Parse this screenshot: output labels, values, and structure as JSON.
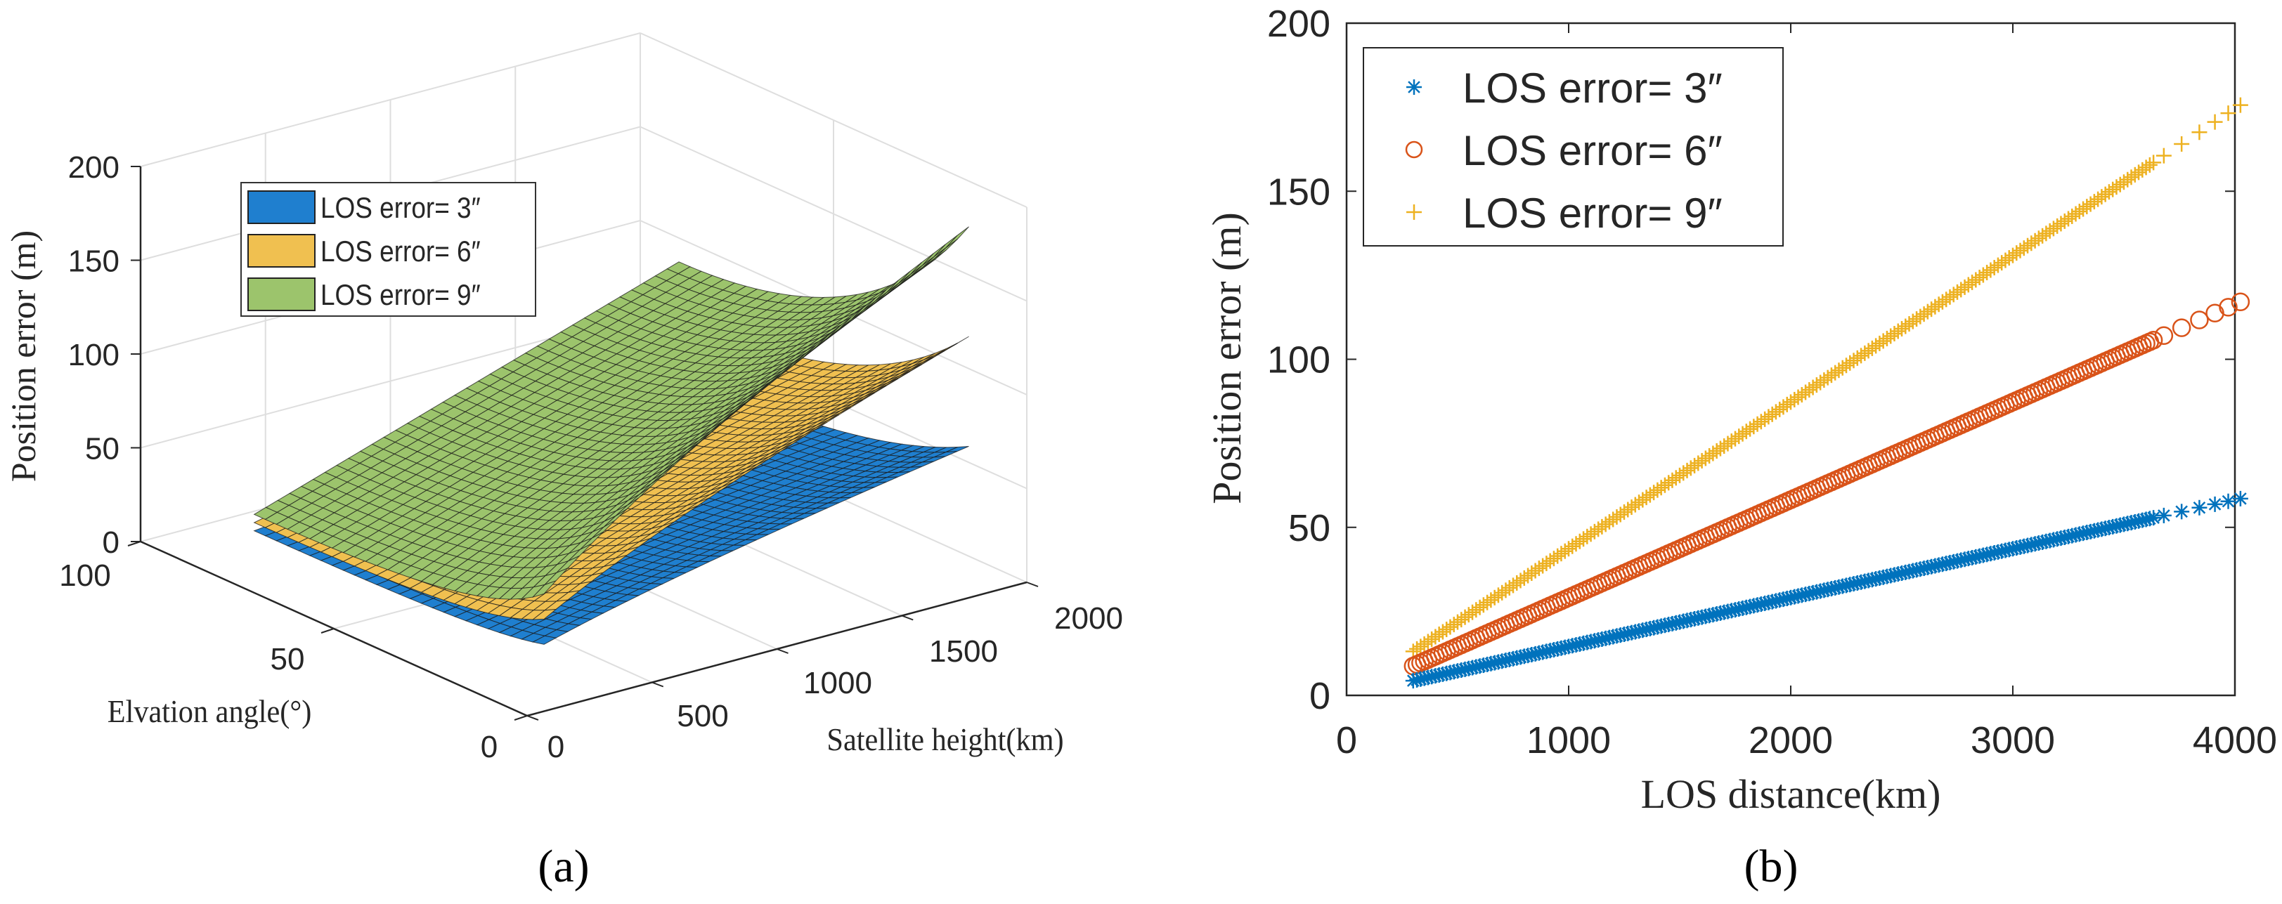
{
  "chart_data": [
    {
      "panel": "(a)",
      "type": "surface3d",
      "xlabel": "Satellite height(km)",
      "ylabel": "Elvation angle(°)",
      "zlabel": "Position error (m)",
      "x_ticks": [
        "0",
        "500",
        "1000",
        "1500",
        "2000"
      ],
      "y_ticks": [
        "100",
        "50",
        "0"
      ],
      "z_ticks": [
        "0",
        "50",
        "100",
        "150",
        "200"
      ],
      "xlim": [
        0,
        2000
      ],
      "ylim": [
        0,
        100
      ],
      "zlim": [
        0,
        200
      ],
      "grid": true,
      "legend_position": "top-left",
      "height_range_km": [
        300,
        2000
      ],
      "elevation_range_deg": [
        15,
        90
      ],
      "series": [
        {
          "name": "LOS error= 3″",
          "arcsec": 3,
          "color": "#1f7fcf",
          "max_error_m": 58.5
        },
        {
          "name": "LOS error= 6″",
          "arcsec": 6,
          "color": "#f0c050",
          "max_error_m": 117
        },
        {
          "name": "LOS error= 9″",
          "arcsec": 9,
          "color": "#9cc46c",
          "max_error_m": 175.5
        }
      ]
    },
    {
      "panel": "(b)",
      "type": "scatter",
      "xlabel": "LOS distance(km)",
      "ylabel": "Position error (m)",
      "x_ticks": [
        "0",
        "1000",
        "2000",
        "3000",
        "4000"
      ],
      "y_ticks": [
        "0",
        "50",
        "100",
        "150",
        "200"
      ],
      "xlim": [
        0,
        4000
      ],
      "ylim": [
        0,
        200
      ],
      "grid": false,
      "legend_position": "top-left",
      "x": [
        300,
        350,
        400,
        450,
        500,
        550,
        600,
        650,
        700,
        750,
        800,
        850,
        900,
        950,
        1000,
        1050,
        1100,
        1150,
        1200,
        1250,
        1300,
        1350,
        1400,
        1450,
        1500,
        1550,
        1600,
        1650,
        1700,
        1750,
        1800,
        1850,
        1900,
        1950,
        2000,
        2050,
        2100,
        2150,
        2200,
        2250,
        2300,
        2350,
        2400,
        2450,
        2500,
        2550,
        2600,
        2650,
        2700,
        2750,
        2800,
        2850,
        2900,
        2950,
        3000,
        3050,
        3100,
        3150,
        3200,
        3250,
        3300,
        3350,
        3400,
        3450,
        3500,
        3550,
        3600,
        3680,
        3760,
        3840,
        3910,
        3970,
        4025
      ],
      "series": [
        {
          "name": "LOS error= 3″",
          "marker": "asterisk",
          "color": "#0072BD",
          "slope_m_per_km": 0.014544,
          "y_at_4025": 58.5
        },
        {
          "name": "LOS error= 6″",
          "marker": "circle",
          "color": "#D95319",
          "slope_m_per_km": 0.029089,
          "y_at_4025": 117.1
        },
        {
          "name": "LOS error= 9″",
          "marker": "plus",
          "color": "#EDB120",
          "slope_m_per_km": 0.043633,
          "y_at_4025": 175.6
        }
      ]
    }
  ]
}
